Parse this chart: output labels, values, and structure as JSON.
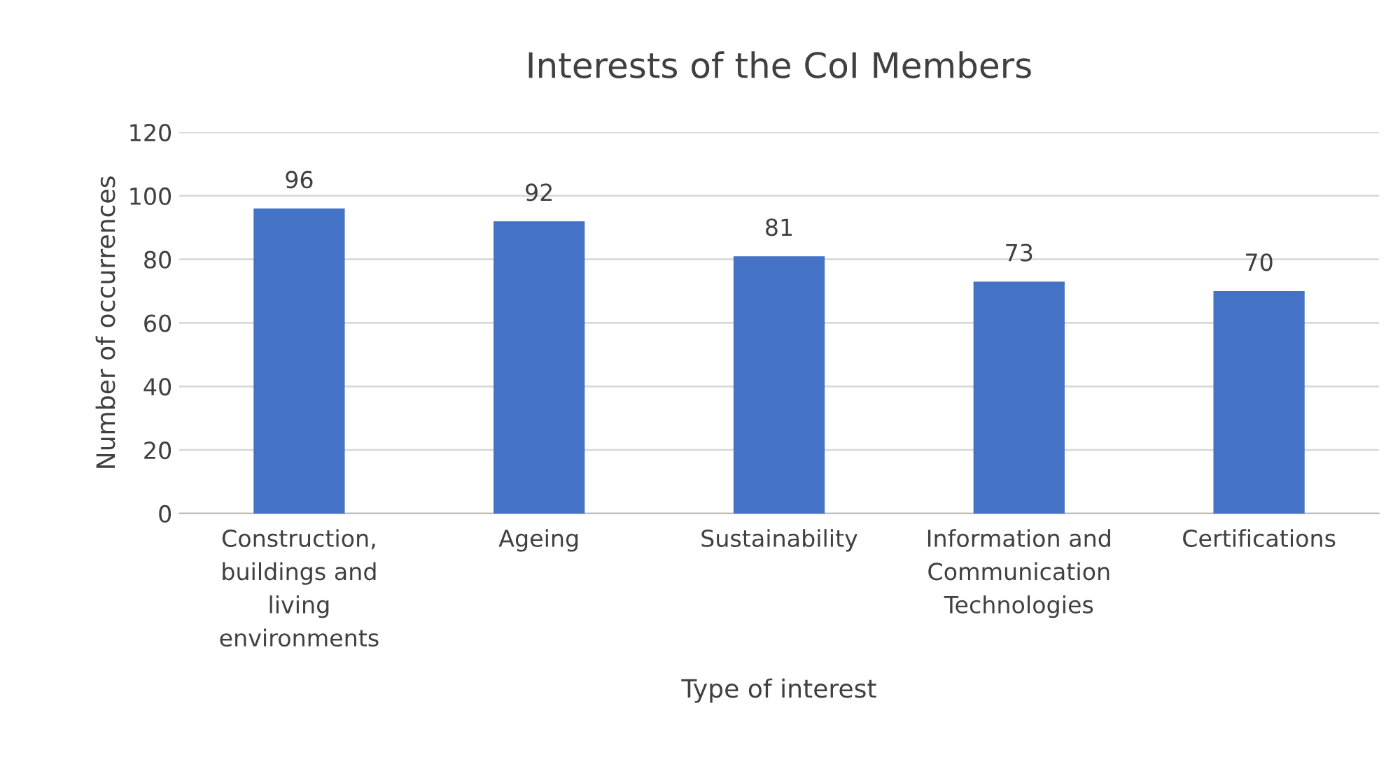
{
  "chart_data": {
    "type": "bar",
    "title": "Interests of the CoI Members",
    "xlabel": "Type of interest",
    "ylabel": "Number of occurrences",
    "categories": [
      "Construction, buildings and living environments",
      "Ageing",
      "Sustainability",
      "Information and Communication Technologies",
      "Certifications"
    ],
    "values": [
      96,
      92,
      81,
      73,
      70
    ],
    "color": "#4472c4",
    "ylim": [
      0,
      120
    ],
    "yticks": [
      0,
      20,
      40,
      60,
      80,
      100,
      120
    ],
    "grid": "y",
    "data_labels": true
  }
}
